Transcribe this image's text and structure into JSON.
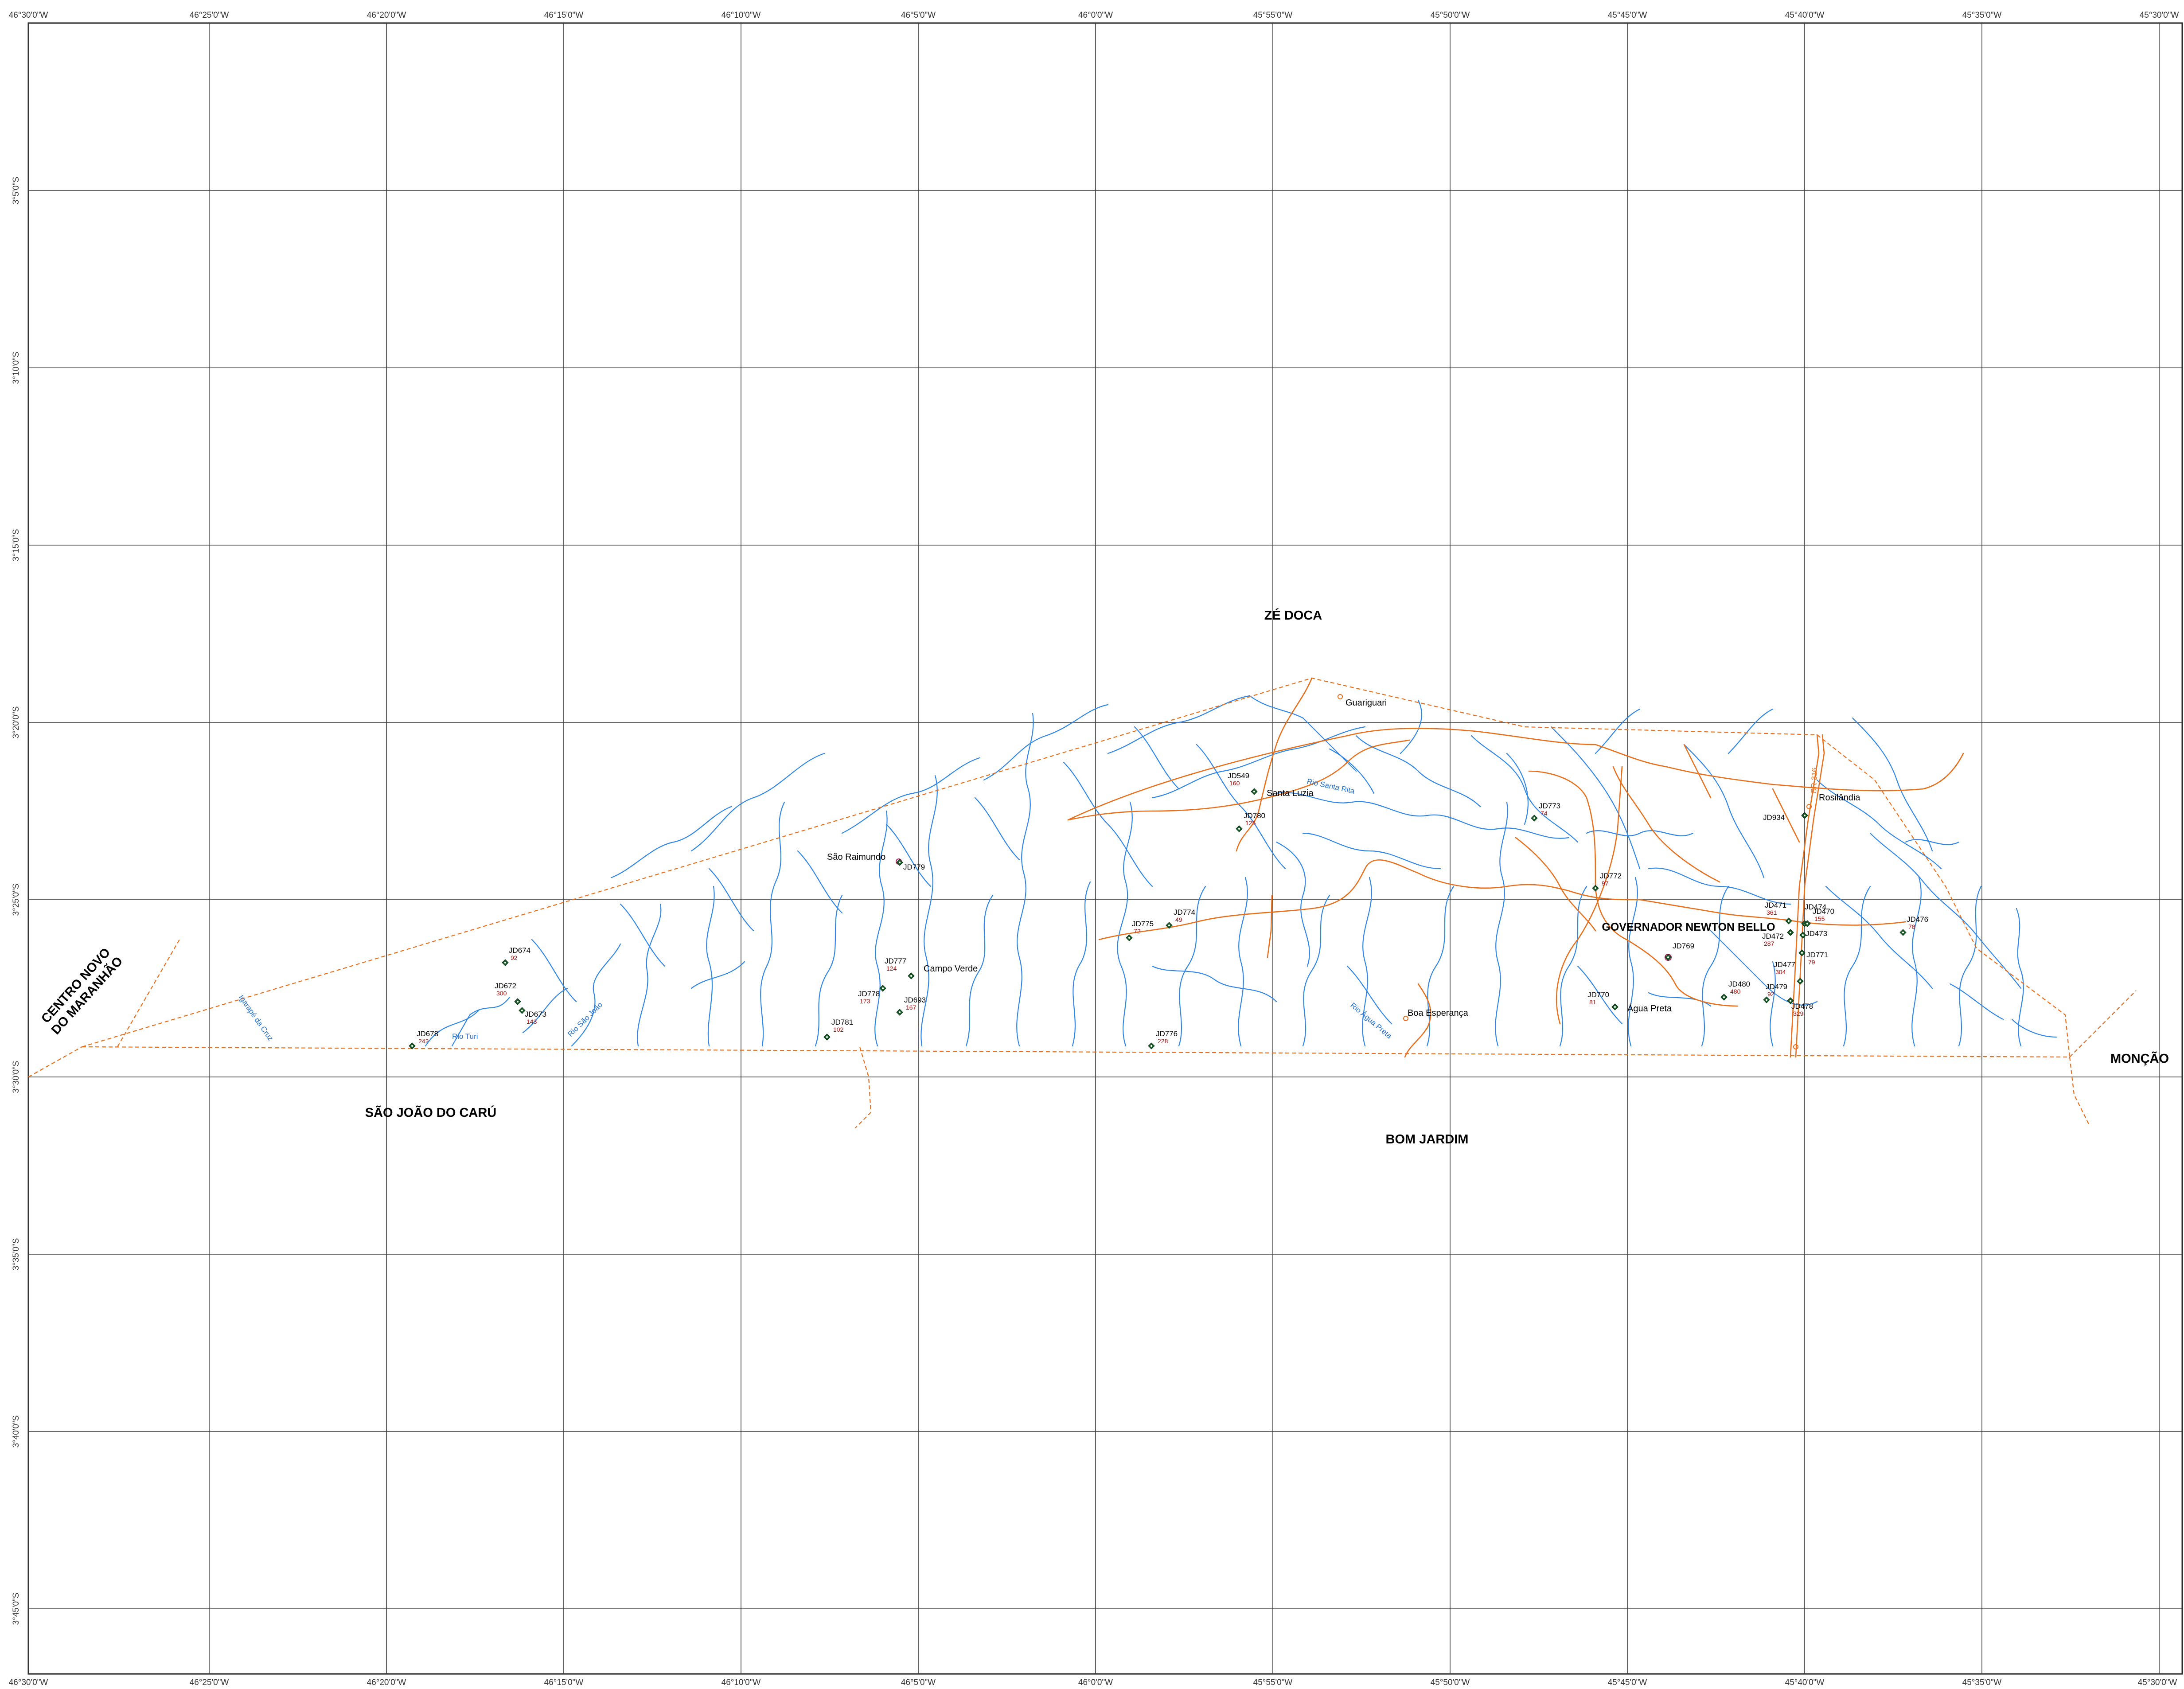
{
  "colors": {
    "grid": "#3a3a3a",
    "river": "#2f86e6",
    "road": "#e8701d",
    "boundary": "#e8701d",
    "well": "#1a5e2a",
    "well_value": "#c00000",
    "town_marker": "#b01a5c"
  },
  "graticule": {
    "lon_labels": [
      "46°30'0\"W",
      "46°25'0\"W",
      "46°20'0\"W",
      "46°15'0\"W",
      "46°10'0\"W",
      "46°5'0\"W",
      "46°0'0\"W",
      "45°55'0\"W",
      "45°50'0\"W",
      "45°45'0\"W",
      "45°40'0\"W",
      "45°35'0\"W",
      "45°30'0\"W"
    ],
    "lat_labels": [
      "3°5'0\"S",
      "3°10'0\"S",
      "3°15'0\"S",
      "3°20'0\"S",
      "3°25'0\"S",
      "3°30'0\"S",
      "3°35'0\"S",
      "3°40'0\"S",
      "3°45'0\"S"
    ]
  },
  "municipalities": [
    {
      "name": "ZÉ DOCA"
    },
    {
      "name": "CENTRO NOVO DO MARANHÃO",
      "lines": [
        "CENTRO NOVO",
        "DO MARANHÃO"
      ]
    },
    {
      "name": "SÃO JOÃO DO CARÚ"
    },
    {
      "name": "BOM JARDIM"
    },
    {
      "name": "MONÇÃO"
    },
    {
      "name": "GOVERNADOR NEWTON BELLO"
    }
  ],
  "places": [
    "Guariguari",
    "Santa Luzia",
    "São Raimundo",
    "Campo Verde",
    "Boa Esperança",
    "Água Preta",
    "Rosilândia"
  ],
  "rivers": [
    "Rio Santa Rita",
    "Igarapé da Cruz",
    "Rio Turi",
    "Rio São João",
    "Rio Água Preta"
  ],
  "roads": [
    "BR-316"
  ],
  "wells": [
    {
      "id": "JD549",
      "value": "160"
    },
    {
      "id": "JD780",
      "value": "125"
    },
    {
      "id": "JD779",
      "value": ""
    },
    {
      "id": "JD773",
      "value": "74"
    },
    {
      "id": "JD772",
      "value": "97"
    },
    {
      "id": "JD934",
      "value": ""
    },
    {
      "id": "JD775",
      "value": "72"
    },
    {
      "id": "JD774",
      "value": "49"
    },
    {
      "id": "JD674",
      "value": "92"
    },
    {
      "id": "JD672",
      "value": "300"
    },
    {
      "id": "JD673",
      "value": "143"
    },
    {
      "id": "JD678",
      "value": "242"
    },
    {
      "id": "JD777",
      "value": "124"
    },
    {
      "id": "JD778",
      "value": "173"
    },
    {
      "id": "JD693",
      "value": "167"
    },
    {
      "id": "JD781",
      "value": "102"
    },
    {
      "id": "JD776",
      "value": "228"
    },
    {
      "id": "JD770",
      "value": "81"
    },
    {
      "id": "JD769",
      "value": ""
    },
    {
      "id": "JD480",
      "value": "480"
    },
    {
      "id": "JD479",
      "value": "92"
    },
    {
      "id": "JD478",
      "value": "329"
    },
    {
      "id": "JD477",
      "value": "304"
    },
    {
      "id": "JD471",
      "value": "361"
    },
    {
      "id": "JD474",
      "value": ""
    },
    {
      "id": "JD470",
      "value": "155"
    },
    {
      "id": "JD472",
      "value": "287"
    },
    {
      "id": "JD473",
      "value": ""
    },
    {
      "id": "JD771",
      "value": "79"
    },
    {
      "id": "JD476",
      "value": "78"
    }
  ]
}
